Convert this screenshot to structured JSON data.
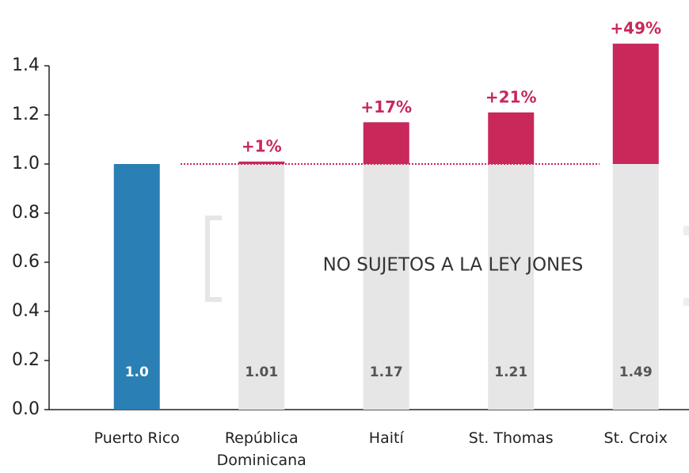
{
  "chart_data": {
    "type": "bar",
    "categories": [
      "Puerto Rico",
      "República\nDominicana",
      "Haití",
      "St. Thomas",
      "St. Croix"
    ],
    "values": [
      1.0,
      1.01,
      1.17,
      1.21,
      1.49
    ],
    "value_labels": [
      "1.0",
      "1.01",
      "1.17",
      "1.21",
      "1.49"
    ],
    "change_labels": [
      null,
      "+1%",
      "+17%",
      "+21%",
      "+49%"
    ],
    "colors": {
      "base": "#2a7fb4",
      "reference": "#e6e6e6",
      "excess": "#c8285a"
    },
    "reference_line": 1.0,
    "annotation": "NO SUJETOS A LA LEY JONES",
    "ylim": [
      0,
      1.4
    ],
    "yticks": [
      {
        "value": 0,
        "label": "0.0"
      },
      0.2,
      0.4,
      0.6,
      0.8,
      {
        "value": 1,
        "label": "1.0"
      },
      1.2,
      1.4
    ]
  }
}
